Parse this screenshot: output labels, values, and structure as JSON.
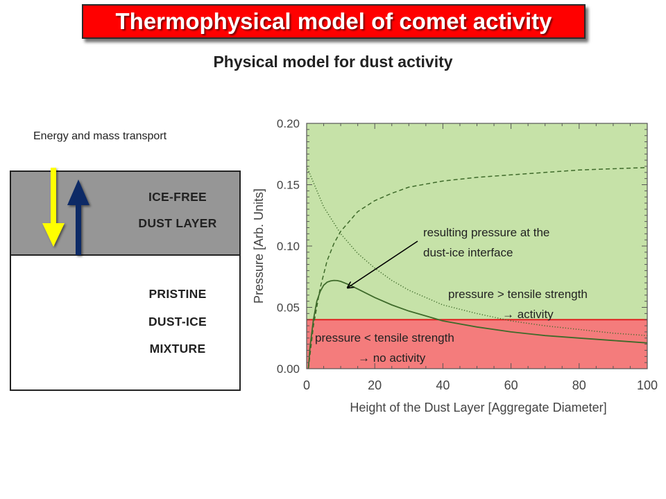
{
  "title": "Thermophysical model of comet activity",
  "subtitle": "Physical model for dust activity",
  "diagram": {
    "energy_label": "Energy and mass transport",
    "top_layer": [
      "ICE-FREE",
      "DUST LAYER"
    ],
    "bottom_layer": [
      "PRISTINE",
      "DUST-ICE",
      "MIXTURE"
    ],
    "arrow_down_color": "#ffff00",
    "arrow_up_color": "#0d2a66"
  },
  "chart_data": {
    "type": "line",
    "xlabel": "Height of the Dust Layer [Aggregate Diameter]",
    "ylabel": "Pressure [Arb. Units]",
    "xlim": [
      0,
      100
    ],
    "ylim": [
      0,
      0.2
    ],
    "xticks": [
      "0",
      "20",
      "40",
      "60",
      "80",
      "100"
    ],
    "yticks": [
      "0.00",
      "0.05",
      "0.10",
      "0.15",
      "0.20"
    ],
    "tensile_strength": 0.04,
    "regions": {
      "above": {
        "color": "#c6e2a8",
        "label_lines": [
          "pressure > tensile strength",
          "→ activity"
        ]
      },
      "below": {
        "color": "#f47c7c",
        "label_lines": [
          "pressure < tensile strength",
          "→ no activity"
        ]
      }
    },
    "annotation": {
      "lines": [
        "resulting pressure at the",
        "dust-ice interface"
      ],
      "arrow_target": [
        12,
        0.066
      ]
    },
    "series": [
      {
        "style": "dashed",
        "x": [
          0.5,
          2,
          4,
          6,
          8,
          10,
          15,
          20,
          25,
          30,
          40,
          50,
          60,
          70,
          80,
          90,
          100
        ],
        "y": [
          0.0,
          0.035,
          0.066,
          0.088,
          0.102,
          0.112,
          0.128,
          0.137,
          0.143,
          0.148,
          0.153,
          0.156,
          0.158,
          0.16,
          0.162,
          0.163,
          0.164
        ]
      },
      {
        "style": "dotted",
        "x": [
          0,
          5,
          10,
          15,
          20,
          25,
          30,
          40,
          50,
          60,
          70,
          80,
          90,
          100
        ],
        "y": [
          0.165,
          0.132,
          0.11,
          0.094,
          0.082,
          0.072,
          0.064,
          0.052,
          0.045,
          0.039,
          0.035,
          0.032,
          0.029,
          0.027
        ]
      },
      {
        "style": "solid",
        "x": [
          0.5,
          1,
          2,
          3,
          4,
          5,
          6,
          7,
          8,
          9,
          10,
          12,
          15,
          20,
          25,
          30,
          40,
          50,
          60,
          70,
          80,
          90,
          100
        ],
        "y": [
          0.0,
          0.018,
          0.04,
          0.055,
          0.063,
          0.068,
          0.0705,
          0.0715,
          0.072,
          0.0718,
          0.0712,
          0.069,
          0.065,
          0.058,
          0.052,
          0.047,
          0.039,
          0.034,
          0.03,
          0.027,
          0.025,
          0.023,
          0.021
        ]
      }
    ],
    "line_color": "#3e6a2a"
  }
}
